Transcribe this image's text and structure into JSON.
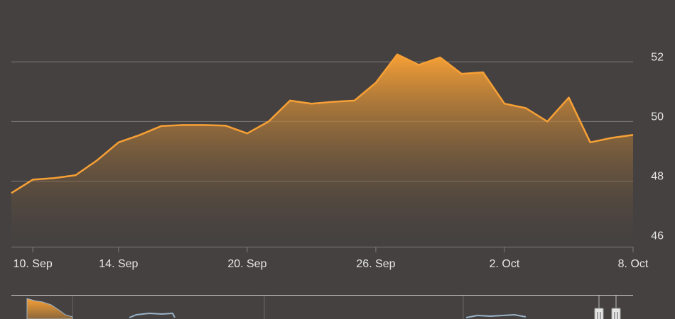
{
  "chart_data": {
    "type": "area",
    "title": "",
    "xlabel": "",
    "ylabel": "",
    "x": [
      "2023-09-09",
      "2023-09-10",
      "2023-09-11",
      "2023-09-12",
      "2023-09-13",
      "2023-09-14",
      "2023-09-15",
      "2023-09-16",
      "2023-09-17",
      "2023-09-18",
      "2023-09-19",
      "2023-09-20",
      "2023-09-21",
      "2023-09-22",
      "2023-09-23",
      "2023-09-24",
      "2023-09-25",
      "2023-09-26",
      "2023-09-27",
      "2023-09-28",
      "2023-09-29",
      "2023-09-30",
      "2023-10-01",
      "2023-10-02",
      "2023-10-03",
      "2023-10-04",
      "2023-10-05",
      "2023-10-06",
      "2023-10-07",
      "2023-10-08"
    ],
    "series": [
      {
        "values": [
          47.6,
          48.05,
          48.1,
          48.2,
          48.7,
          49.3,
          49.55,
          49.85,
          49.88,
          49.88,
          49.86,
          49.6,
          50.0,
          50.7,
          50.6,
          50.66,
          50.7,
          51.3,
          52.25,
          51.9,
          52.15,
          51.6,
          51.65,
          50.6,
          50.45,
          50.0,
          50.8,
          49.3,
          49.45,
          49.55
        ]
      }
    ],
    "ylim": [
      45.8,
      53.6
    ],
    "y_ticks": [
      46,
      48,
      50,
      52
    ],
    "x_tick_labels": [
      "10. Sep",
      "14. Sep",
      "20. Sep",
      "26. Sep",
      "2. Oct",
      "8. Oct"
    ],
    "x_tick_dates": [
      "2023-09-10",
      "2023-09-14",
      "2023-09-20",
      "2023-09-26",
      "2023-10-02",
      "2023-10-08"
    ],
    "x_range": [
      "2023-09-09",
      "2023-10-08"
    ],
    "y_axis_side": "right",
    "grid": true,
    "legend": "none",
    "colors": {
      "background": "#454140",
      "line": "#f7a035",
      "fill_top": "#f7a035",
      "fill_bottom": "#454140",
      "grid": "#7d7b79",
      "text": "#e6e6e6",
      "navigator_line": "#c8c8c8",
      "navigator_series": "#9ab3c9"
    }
  },
  "navigator": {
    "handle_icon": "grip-lines-icon"
  }
}
